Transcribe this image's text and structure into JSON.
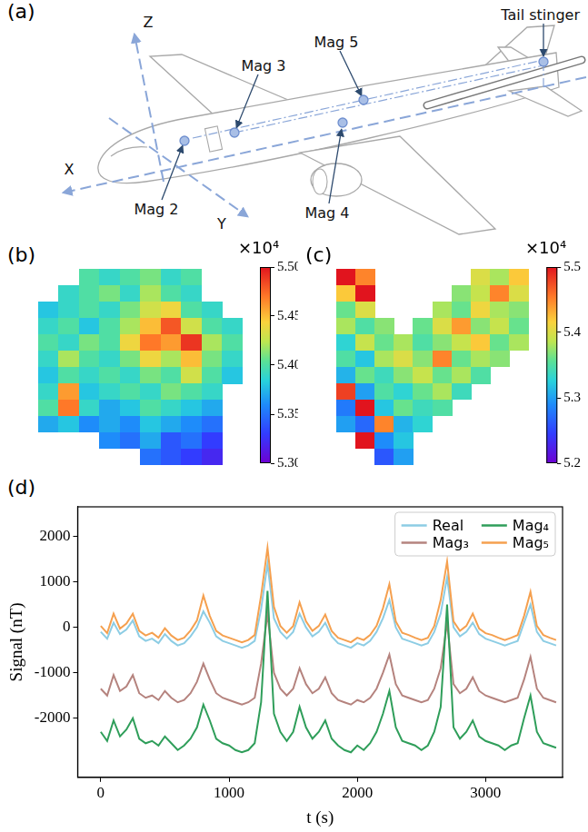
{
  "diagram": {
    "panel": "(a)",
    "axis_labels": [
      "Z",
      "X",
      "Y"
    ],
    "sensor_labels": [
      "Mag 2",
      "Mag 3",
      "Mag 4",
      "Mag 5"
    ],
    "tail_label": "Tail stinger"
  },
  "chart_data": [
    {
      "type": "heatmap",
      "panel": "(b)",
      "tick_labels": false,
      "cells": [
        [
          null,
          null,
          5.4,
          5.39,
          5.4,
          5.41,
          5.39,
          5.4,
          null,
          null
        ],
        [
          null,
          5.39,
          5.4,
          5.41,
          5.39,
          5.42,
          5.4,
          5.39,
          null,
          null
        ],
        [
          5.38,
          5.39,
          5.4,
          5.39,
          5.41,
          5.43,
          5.44,
          5.4,
          5.39,
          null
        ],
        [
          5.39,
          5.4,
          5.38,
          5.4,
          5.42,
          5.45,
          5.48,
          5.43,
          5.4,
          5.39
        ],
        [
          5.4,
          5.39,
          5.41,
          5.4,
          5.44,
          5.47,
          5.46,
          5.49,
          5.42,
          5.4
        ],
        [
          5.39,
          5.42,
          5.4,
          5.39,
          5.41,
          5.44,
          5.42,
          5.45,
          5.41,
          5.39
        ],
        [
          5.38,
          5.4,
          5.39,
          5.4,
          5.39,
          5.41,
          5.4,
          5.43,
          5.4,
          5.38
        ],
        [
          5.39,
          5.46,
          5.38,
          5.39,
          5.4,
          5.39,
          5.41,
          5.4,
          5.39,
          null
        ],
        [
          5.4,
          5.47,
          5.39,
          5.37,
          5.38,
          5.4,
          5.39,
          5.38,
          5.37,
          null
        ],
        [
          5.37,
          5.38,
          5.36,
          5.37,
          5.36,
          5.38,
          5.37,
          5.36,
          5.35,
          null
        ],
        [
          null,
          null,
          null,
          5.36,
          5.35,
          5.37,
          5.34,
          5.35,
          5.33,
          null
        ],
        [
          null,
          null,
          null,
          null,
          null,
          5.35,
          5.34,
          5.33,
          5.32,
          null
        ]
      ],
      "colorbar": {
        "range": [
          5.3,
          5.5
        ],
        "ticks": [
          {
            "value": 5.3,
            "label": "5.30"
          },
          5.35,
          {
            "value": 5.4,
            "label": "5.40"
          },
          5.45,
          {
            "value": 5.5,
            "label": "5.50"
          }
        ],
        "multiplier": "×10⁴"
      }
    },
    {
      "type": "heatmap",
      "panel": "(c)",
      "tick_labels": false,
      "cells": [
        [
          5.5,
          5.45,
          null,
          null,
          null,
          null,
          null,
          5.4,
          5.38,
          5.42
        ],
        [
          5.42,
          5.5,
          null,
          null,
          null,
          null,
          5.37,
          5.39,
          5.45,
          5.4
        ],
        [
          5.36,
          5.4,
          null,
          null,
          null,
          5.38,
          5.36,
          5.41,
          5.38,
          5.37
        ],
        [
          5.38,
          5.35,
          5.37,
          null,
          5.36,
          5.4,
          5.44,
          5.37,
          5.39,
          5.36
        ],
        [
          5.33,
          5.39,
          5.36,
          5.38,
          5.35,
          5.37,
          5.39,
          5.42,
          5.36,
          5.38
        ],
        [
          5.35,
          5.32,
          5.38,
          5.4,
          5.37,
          5.45,
          5.36,
          5.38,
          5.37,
          null
        ],
        [
          5.31,
          5.36,
          5.34,
          5.37,
          5.39,
          5.36,
          5.38,
          5.35,
          null,
          null
        ],
        [
          5.48,
          5.3,
          5.35,
          5.33,
          5.36,
          5.38,
          5.34,
          null,
          null,
          null
        ],
        [
          5.28,
          5.5,
          5.32,
          5.36,
          5.34,
          5.35,
          null,
          null,
          null,
          null
        ],
        [
          5.3,
          5.27,
          5.45,
          5.31,
          5.33,
          null,
          null,
          null,
          null,
          null
        ],
        [
          null,
          5.5,
          5.29,
          5.32,
          null,
          null,
          null,
          null,
          null,
          null
        ],
        [
          null,
          null,
          5.26,
          5.3,
          null,
          null,
          null,
          null,
          null,
          null
        ]
      ],
      "colorbar": {
        "range": [
          5.2,
          5.5
        ],
        "ticks": [
          5.2,
          5.3,
          5.4,
          5.5
        ],
        "multiplier": "×10⁴"
      }
    },
    {
      "type": "line",
      "panel": "(d)",
      "x_label": "t (s)",
      "y_label": "Signal (nT)",
      "legend": "upper right",
      "grid": false,
      "xlim": [
        -180,
        3600
      ],
      "xticks": [
        0,
        1000,
        2000,
        3000
      ],
      "ylim": [
        -3300,
        2650
      ],
      "yticks": [
        -2000,
        -1000,
        0,
        1000,
        2000
      ],
      "x": [
        0,
        50,
        100,
        150,
        200,
        250,
        300,
        350,
        400,
        450,
        500,
        550,
        600,
        650,
        700,
        750,
        800,
        850,
        900,
        950,
        1000,
        1050,
        1100,
        1150,
        1200,
        1250,
        1300,
        1350,
        1400,
        1450,
        1500,
        1550,
        1600,
        1650,
        1700,
        1750,
        1800,
        1850,
        1900,
        1950,
        2000,
        2050,
        2100,
        2150,
        2200,
        2250,
        2300,
        2350,
        2400,
        2450,
        2500,
        2550,
        2600,
        2650,
        2700,
        2750,
        2800,
        2850,
        2900,
        2950,
        3000,
        3050,
        3100,
        3150,
        3200,
        3250,
        3300,
        3350,
        3400,
        3450,
        3500,
        3550
      ],
      "series": [
        {
          "name": "Real",
          "color": "#8dcde4",
          "values": [
            -100,
            -250,
            100,
            -150,
            -50,
            150,
            -200,
            -300,
            -250,
            -350,
            -150,
            -300,
            -400,
            -350,
            -200,
            0,
            350,
            100,
            -200,
            -300,
            -350,
            -400,
            -450,
            -400,
            -300,
            400,
            1400,
            200,
            -100,
            -250,
            -100,
            300,
            0,
            -200,
            -100,
            100,
            -200,
            -350,
            -400,
            -450,
            -350,
            -400,
            -300,
            -100,
            200,
            600,
            0,
            -250,
            -300,
            -350,
            -400,
            -350,
            -100,
            300,
            1100,
            0,
            -200,
            -100,
            100,
            -150,
            -250,
            -300,
            -350,
            -400,
            -350,
            -300,
            100,
            500,
            -100,
            -300,
            -350,
            -400
          ]
        },
        {
          "name": "Mag₃",
          "color": "#b5837e",
          "values": [
            -1350,
            -1500,
            -1050,
            -1400,
            -1300,
            -1050,
            -1450,
            -1550,
            -1500,
            -1600,
            -1400,
            -1550,
            -1650,
            -1600,
            -1450,
            -1200,
            -800,
            -1150,
            -1450,
            -1550,
            -1600,
            -1650,
            -1700,
            -1650,
            -1550,
            -800,
            300,
            -1000,
            -1350,
            -1500,
            -1350,
            -900,
            -1250,
            -1450,
            -1350,
            -1100,
            -1450,
            -1600,
            -1650,
            -1700,
            -1600,
            -1650,
            -1550,
            -1350,
            -1000,
            -600,
            -1250,
            -1500,
            -1550,
            -1600,
            -1650,
            -1600,
            -1350,
            -900,
            100,
            -1250,
            -1450,
            -1350,
            -1100,
            -1400,
            -1500,
            -1550,
            -1600,
            -1650,
            -1600,
            -1550,
            -1150,
            -650,
            -1350,
            -1550,
            -1600,
            -1650
          ]
        },
        {
          "name": "Mag₄",
          "color": "#2f9e5a",
          "values": [
            -2300,
            -2500,
            -2050,
            -2400,
            -2250,
            -2000,
            -2450,
            -2550,
            -2500,
            -2600,
            -2400,
            -2550,
            -2700,
            -2600,
            -2450,
            -2200,
            -1700,
            -2050,
            -2450,
            -2550,
            -2600,
            -2700,
            -2750,
            -2700,
            -2550,
            -1650,
            800,
            -1900,
            -2300,
            -2500,
            -2300,
            -1750,
            -2200,
            -2450,
            -2300,
            -2050,
            -2450,
            -2600,
            -2700,
            -2750,
            -2600,
            -2700,
            -2550,
            -2300,
            -1900,
            -1400,
            -2200,
            -2500,
            -2550,
            -2600,
            -2700,
            -2600,
            -2300,
            -1750,
            500,
            -2200,
            -2450,
            -2300,
            -2050,
            -2400,
            -2500,
            -2550,
            -2600,
            -2700,
            -2600,
            -2550,
            -2000,
            -1500,
            -2300,
            -2550,
            -2600,
            -2650
          ]
        },
        {
          "name": "Mag₅",
          "color": "#f5a04f",
          "values": [
            30,
            -130,
            300,
            -30,
            80,
            300,
            -80,
            -180,
            -120,
            -230,
            -20,
            -180,
            -280,
            -230,
            -70,
            150,
            700,
            250,
            -80,
            -180,
            -230,
            -280,
            -330,
            -280,
            -170,
            700,
            1750,
            450,
            30,
            -120,
            30,
            550,
            130,
            -80,
            30,
            280,
            -80,
            -230,
            -280,
            -330,
            -230,
            -280,
            -170,
            30,
            420,
            950,
            130,
            -120,
            -170,
            -230,
            -280,
            -230,
            30,
            600,
            1450,
            130,
            -80,
            30,
            300,
            -30,
            -130,
            -170,
            -230,
            -280,
            -230,
            -170,
            250,
            780,
            30,
            -170,
            -230,
            -280
          ]
        }
      ]
    }
  ]
}
